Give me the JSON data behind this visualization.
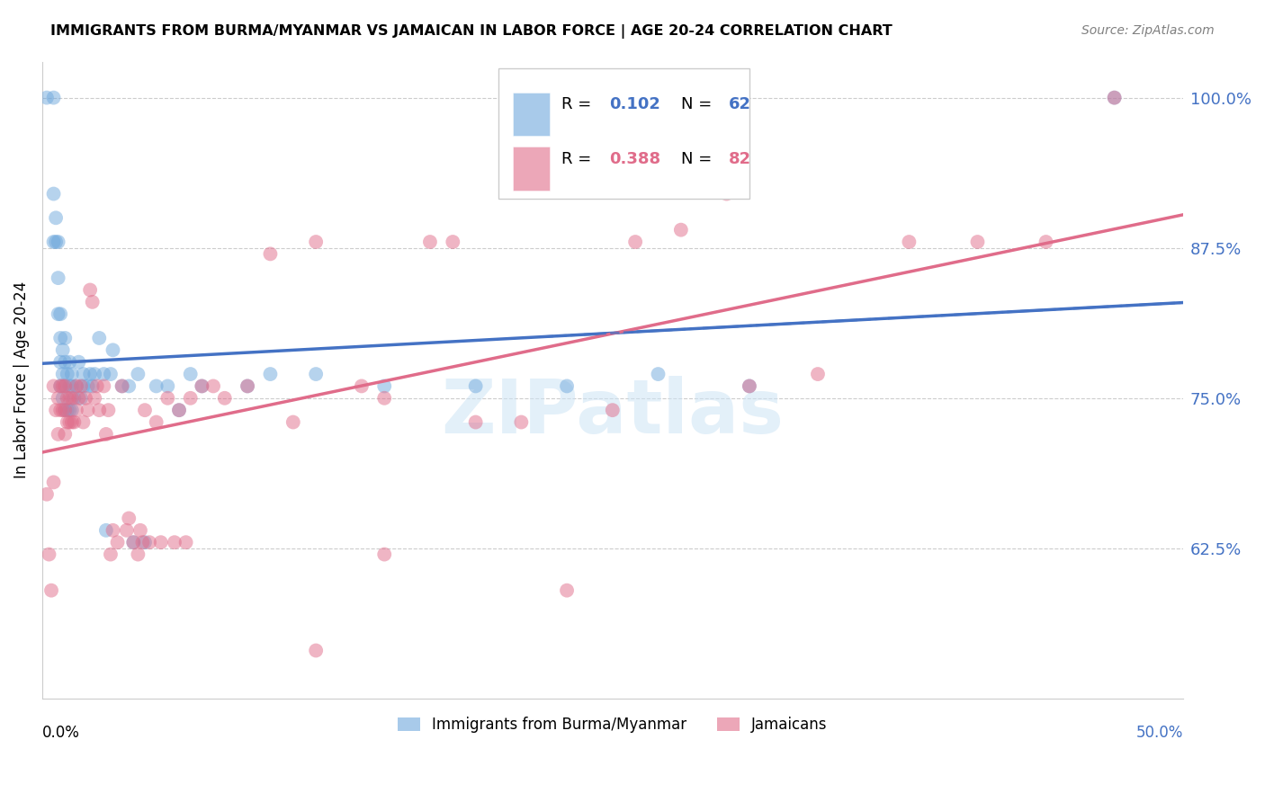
{
  "title": "IMMIGRANTS FROM BURMA/MYANMAR VS JAMAICAN IN LABOR FORCE | AGE 20-24 CORRELATION CHART",
  "source": "Source: ZipAtlas.com",
  "ylabel": "In Labor Force | Age 20-24",
  "legend_r_burma": "0.102",
  "legend_n_burma": "62",
  "legend_r_jamaican": "0.388",
  "legend_n_jamaican": "82",
  "burma_color": "#6fa8dc",
  "jamaican_color": "#e06c8a",
  "burma_line_color": "#4472c4",
  "jamaican_line_color": "#e06c8a",
  "watermark_text": "ZIPatlas",
  "burma_scatter_x": [
    0.002,
    0.005,
    0.005,
    0.005,
    0.006,
    0.006,
    0.007,
    0.007,
    0.007,
    0.008,
    0.008,
    0.008,
    0.008,
    0.009,
    0.009,
    0.009,
    0.01,
    0.01,
    0.01,
    0.01,
    0.011,
    0.011,
    0.012,
    0.012,
    0.012,
    0.013,
    0.013,
    0.013,
    0.014,
    0.015,
    0.016,
    0.017,
    0.018,
    0.018,
    0.02,
    0.021,
    0.022,
    0.023,
    0.025,
    0.027,
    0.028,
    0.03,
    0.031,
    0.035,
    0.038,
    0.04,
    0.042,
    0.045,
    0.05,
    0.055,
    0.06,
    0.065,
    0.07,
    0.09,
    0.1,
    0.12,
    0.15,
    0.19,
    0.23,
    0.27,
    0.31,
    0.47
  ],
  "burma_scatter_y": [
    1.0,
    0.92,
    0.88,
    1.0,
    0.88,
    0.9,
    0.82,
    0.85,
    0.88,
    0.76,
    0.78,
    0.8,
    0.82,
    0.75,
    0.77,
    0.79,
    0.74,
    0.76,
    0.78,
    0.8,
    0.74,
    0.77,
    0.74,
    0.76,
    0.78,
    0.74,
    0.76,
    0.77,
    0.75,
    0.76,
    0.78,
    0.75,
    0.76,
    0.77,
    0.76,
    0.77,
    0.76,
    0.77,
    0.8,
    0.77,
    0.64,
    0.77,
    0.79,
    0.76,
    0.76,
    0.63,
    0.77,
    0.63,
    0.76,
    0.76,
    0.74,
    0.77,
    0.76,
    0.76,
    0.77,
    0.77,
    0.76,
    0.76,
    0.76,
    0.77,
    0.76,
    1.0
  ],
  "jamaican_scatter_x": [
    0.002,
    0.003,
    0.004,
    0.005,
    0.005,
    0.006,
    0.007,
    0.007,
    0.008,
    0.008,
    0.009,
    0.009,
    0.01,
    0.01,
    0.01,
    0.011,
    0.011,
    0.012,
    0.012,
    0.013,
    0.013,
    0.014,
    0.015,
    0.015,
    0.016,
    0.017,
    0.018,
    0.019,
    0.02,
    0.021,
    0.022,
    0.023,
    0.024,
    0.025,
    0.027,
    0.028,
    0.029,
    0.03,
    0.031,
    0.033,
    0.035,
    0.037,
    0.038,
    0.04,
    0.042,
    0.043,
    0.044,
    0.045,
    0.047,
    0.05,
    0.052,
    0.055,
    0.058,
    0.06,
    0.063,
    0.065,
    0.07,
    0.075,
    0.08,
    0.09,
    0.1,
    0.11,
    0.12,
    0.14,
    0.15,
    0.17,
    0.19,
    0.21,
    0.23,
    0.26,
    0.28,
    0.31,
    0.34,
    0.38,
    0.41,
    0.44,
    0.47,
    0.3,
    0.25,
    0.18,
    0.15,
    0.12
  ],
  "jamaican_scatter_y": [
    0.67,
    0.62,
    0.59,
    0.68,
    0.76,
    0.74,
    0.72,
    0.75,
    0.74,
    0.76,
    0.74,
    0.76,
    0.72,
    0.74,
    0.76,
    0.73,
    0.75,
    0.73,
    0.75,
    0.73,
    0.75,
    0.73,
    0.74,
    0.76,
    0.75,
    0.76,
    0.73,
    0.75,
    0.74,
    0.84,
    0.83,
    0.75,
    0.76,
    0.74,
    0.76,
    0.72,
    0.74,
    0.62,
    0.64,
    0.63,
    0.76,
    0.64,
    0.65,
    0.63,
    0.62,
    0.64,
    0.63,
    0.74,
    0.63,
    0.73,
    0.63,
    0.75,
    0.63,
    0.74,
    0.63,
    0.75,
    0.76,
    0.76,
    0.75,
    0.76,
    0.87,
    0.73,
    0.88,
    0.76,
    0.75,
    0.88,
    0.73,
    0.73,
    0.59,
    0.88,
    0.89,
    0.76,
    0.77,
    0.88,
    0.88,
    0.88,
    1.0,
    0.92,
    0.74,
    0.88,
    0.62,
    0.54
  ],
  "xlim": [
    0.0,
    0.5
  ],
  "ylim": [
    0.5,
    1.03
  ],
  "right_yticks": [
    1.0,
    0.875,
    0.75,
    0.625
  ],
  "right_yticklabels": [
    "100.0%",
    "87.5%",
    "75.0%",
    "62.5%"
  ],
  "right_tick_color": "#4472c4",
  "grid_color": "#cccccc",
  "grid_linestyle": "--",
  "spine_color": "#cccccc"
}
